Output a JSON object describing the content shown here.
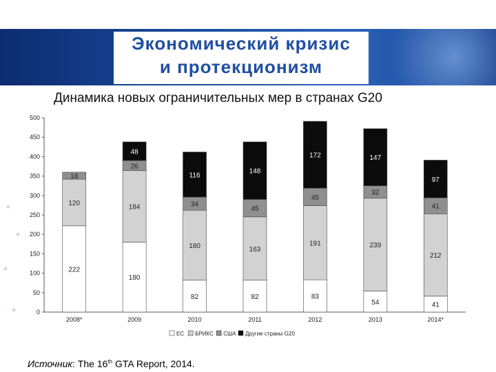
{
  "slide": {
    "title_line1": "Экономический кризис",
    "title_line2": "и протекционизм",
    "subtitle": "Динамика новых ограничительных мер в странах G20",
    "source_label": "Источник",
    "source_pre": ":  The 16",
    "source_sup": "th",
    "source_post": " GTA Report, 2014."
  },
  "chart_data": {
    "type": "bar",
    "stacked": true,
    "categories": [
      "2008*",
      "2009",
      "2010",
      "2011",
      "2012",
      "2013",
      "2014*"
    ],
    "ylim": [
      0,
      500
    ],
    "yticks": [
      0,
      50,
      100,
      150,
      200,
      250,
      300,
      350,
      400,
      450,
      500
    ],
    "grid": false,
    "legend_position": "bottom",
    "series": [
      {
        "name": "ЕС",
        "values": [
          222,
          180,
          82,
          82,
          83,
          54,
          41
        ],
        "color": "#ffffff",
        "label_color": "#222222"
      },
      {
        "name": "БРИКС",
        "values": [
          120,
          184,
          180,
          163,
          191,
          239,
          212
        ],
        "color": "#d2d2d2",
        "label_color": "#222222"
      },
      {
        "name": "США",
        "values": [
          18,
          26,
          34,
          45,
          45,
          32,
          41
        ],
        "color": "#8f8f8f",
        "label_color": "#222222"
      },
      {
        "name": "Другие страны G20",
        "values": [
          0,
          48,
          116,
          148,
          172,
          147,
          97
        ],
        "color": "#0b0b0b",
        "label_color": "#ffffff"
      }
    ]
  }
}
